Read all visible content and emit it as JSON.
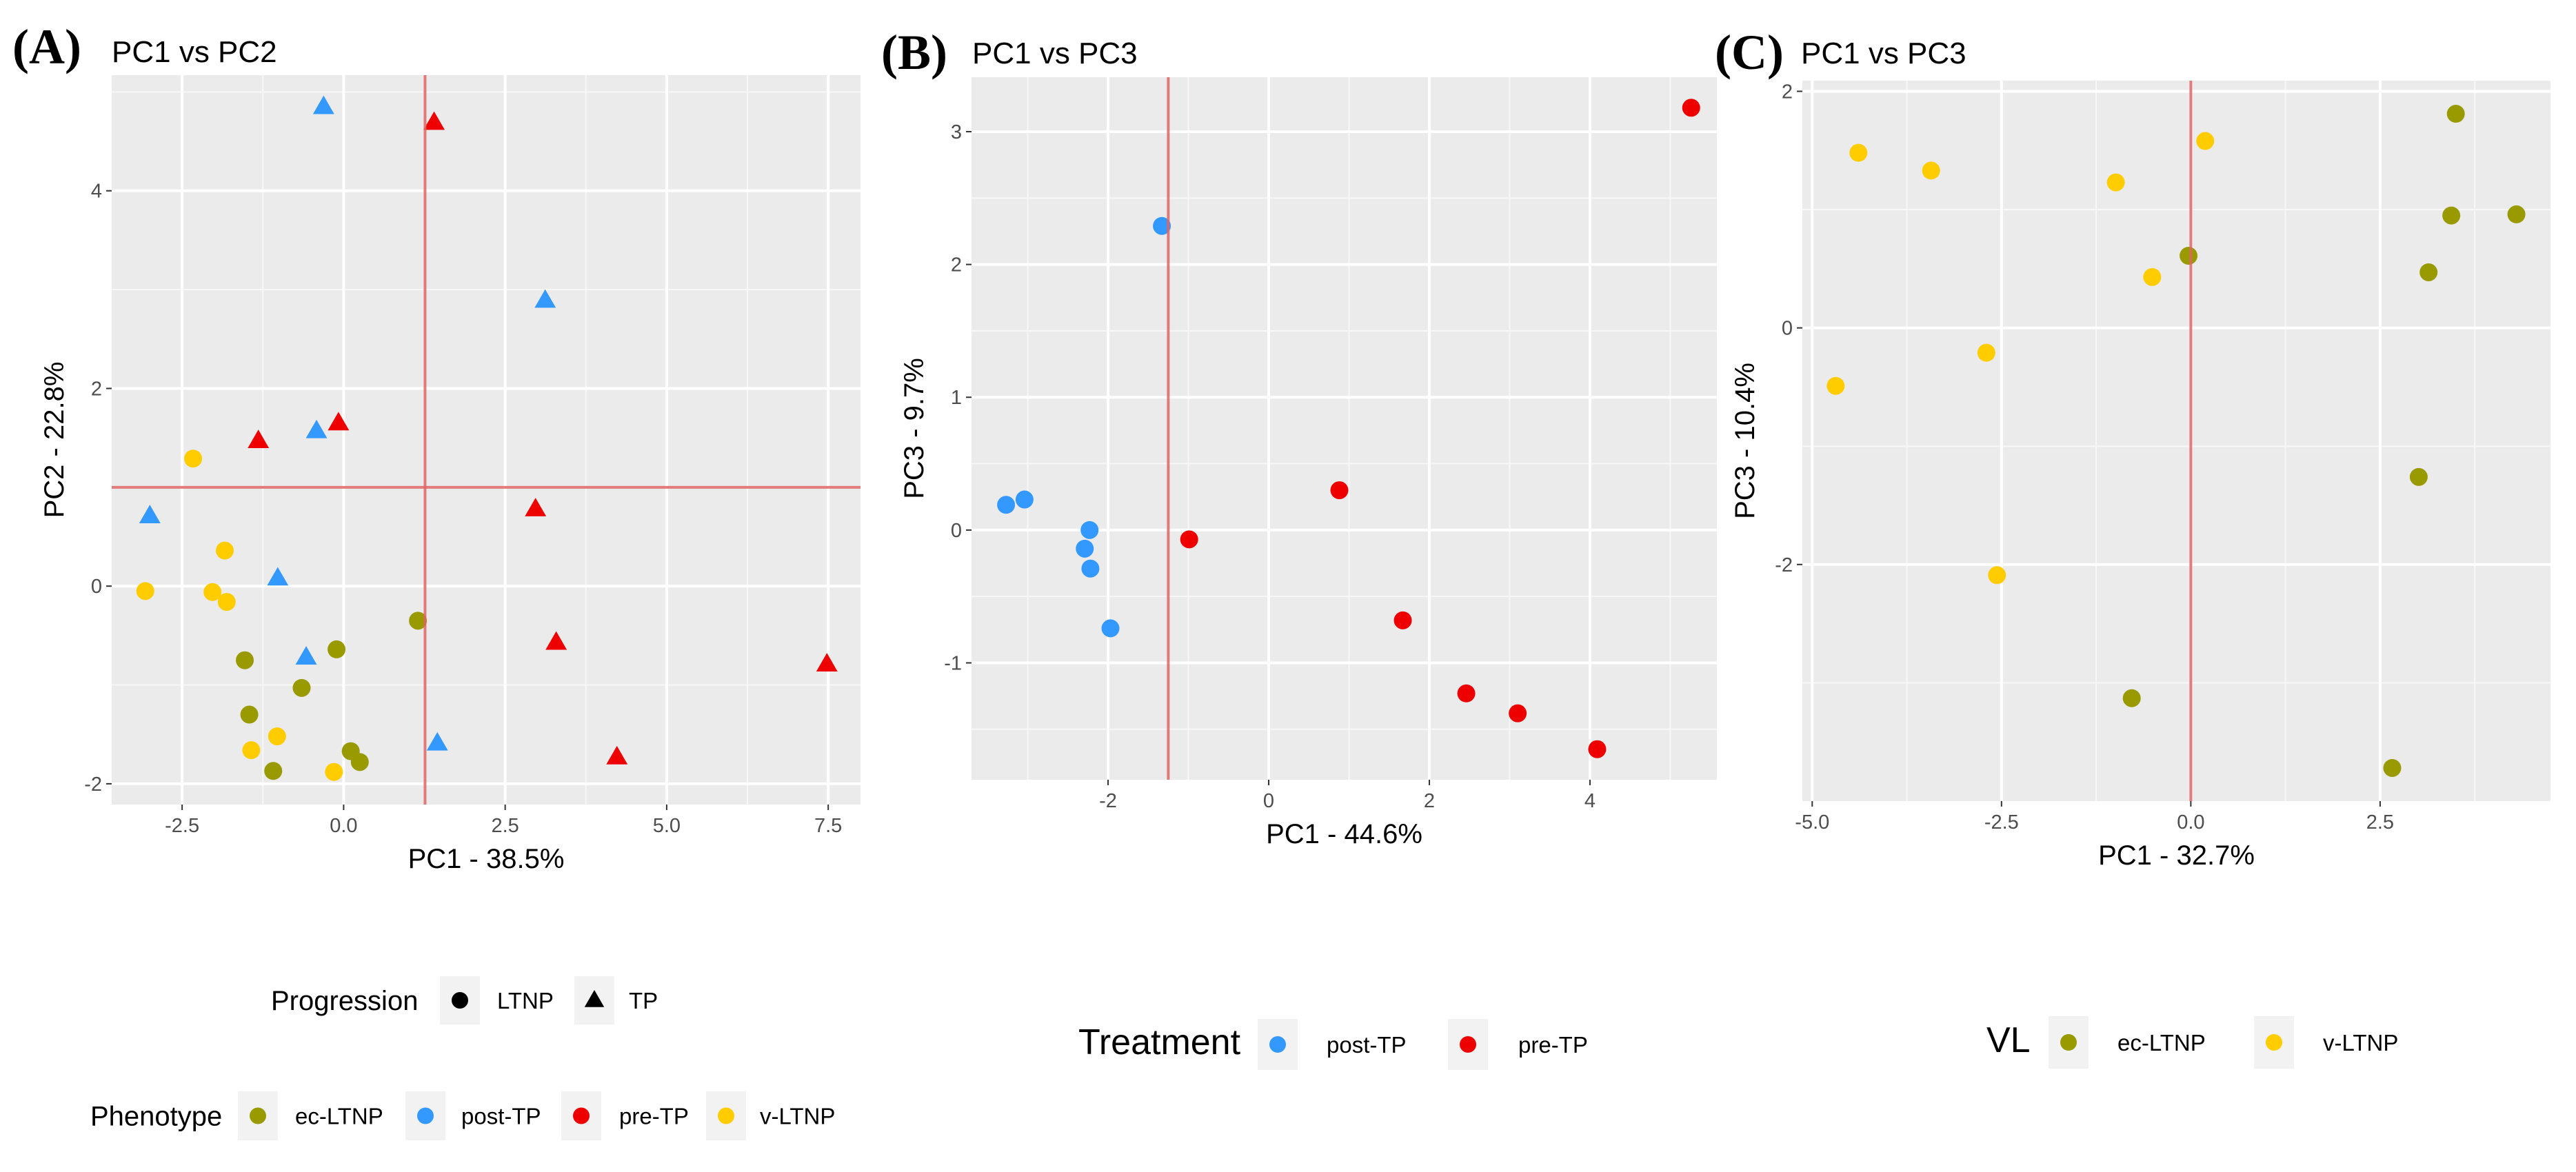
{
  "chart_data": [
    {
      "type": "scatter",
      "panel_label": "(A)",
      "title": "PC1 vs PC2",
      "xlabel": "PC1 - 38.5%",
      "ylabel": "PC2 - 22.8%",
      "xlim": [
        -3.59,
        8.0
      ],
      "ylim": [
        -2.21,
        5.17
      ],
      "xticks": [
        -2.5,
        0.0,
        2.5,
        5.0,
        7.5
      ],
      "xtick_labels": [
        "-2.5",
        "0.0",
        "2.5",
        "5.0",
        "7.5"
      ],
      "yticks": [
        -2,
        0,
        2,
        4
      ],
      "ytick_labels": [
        "-2",
        "0",
        "2",
        "4"
      ],
      "grid": true,
      "reference_lines": {
        "vline": 1.26,
        "hline": 1.0,
        "color": "#E06666"
      },
      "series": [
        {
          "name": "ec-LTNP",
          "shape": "circle",
          "color": "#999900",
          "points": [
            [
              1.15,
              -0.35
            ],
            [
              -0.11,
              -0.64
            ],
            [
              -1.53,
              -0.75
            ],
            [
              -0.65,
              -1.03
            ],
            [
              -1.46,
              -1.3
            ],
            [
              0.11,
              -1.67
            ],
            [
              0.25,
              -1.78
            ],
            [
              -1.09,
              -1.87
            ]
          ]
        },
        {
          "name": "post-TP",
          "shape": "triangle",
          "color": "#3399FF",
          "points": [
            [
              -0.31,
              4.85
            ],
            [
              3.12,
              2.89
            ],
            [
              -0.42,
              1.57
            ],
            [
              -3.0,
              0.71
            ],
            [
              -1.02,
              0.08
            ],
            [
              -0.58,
              -0.72
            ],
            [
              1.45,
              -1.59
            ]
          ]
        },
        {
          "name": "pre-TP",
          "shape": "triangle",
          "color": "#EE0000",
          "points": [
            [
              1.4,
              4.69
            ],
            [
              -0.08,
              1.65
            ],
            [
              -1.32,
              1.47
            ],
            [
              2.97,
              0.78
            ],
            [
              3.29,
              -0.57
            ],
            [
              7.48,
              -0.79
            ],
            [
              4.23,
              -1.73
            ]
          ]
        },
        {
          "name": "v-LTNP",
          "shape": "circle",
          "color": "#FFCC00",
          "points": [
            [
              -2.33,
              1.29
            ],
            [
              -1.84,
              0.36
            ],
            [
              -3.07,
              -0.05
            ],
            [
              -2.03,
              -0.06
            ],
            [
              -1.81,
              -0.16
            ],
            [
              -1.03,
              -1.52
            ],
            [
              -1.43,
              -1.66
            ],
            [
              -0.15,
              -1.88
            ]
          ]
        }
      ],
      "legends": [
        {
          "title": "Progression",
          "position": "bottom",
          "entries": [
            {
              "label": "LTNP",
              "shape": "circle",
              "color": "#000000"
            },
            {
              "label": "TP",
              "shape": "triangle",
              "color": "#000000"
            }
          ]
        },
        {
          "title": "Phenotype",
          "position": "bottom",
          "entries": [
            {
              "label": "ec-LTNP",
              "shape": "circle",
              "color": "#999900"
            },
            {
              "label": "post-TP",
              "shape": "circle",
              "color": "#3399FF"
            },
            {
              "label": "pre-TP",
              "shape": "circle",
              "color": "#EE0000"
            },
            {
              "label": "v-LTNP",
              "shape": "circle",
              "color": "#FFCC00"
            }
          ]
        }
      ]
    },
    {
      "type": "scatter",
      "panel_label": "(B)",
      "title": "PC1 vs PC3",
      "xlabel": "PC1 - 44.6%",
      "ylabel": "PC3 - 9.7%",
      "xlim": [
        -3.7,
        5.58
      ],
      "ylim": [
        -1.88,
        3.41
      ],
      "xticks": [
        -2,
        0,
        2,
        4
      ],
      "xtick_labels": [
        "-2",
        "0",
        "2",
        "4"
      ],
      "yticks": [
        -1,
        0,
        1,
        2,
        3
      ],
      "ytick_labels": [
        "-1",
        "0",
        "1",
        "2",
        "3"
      ],
      "grid": true,
      "reference_lines": {
        "vline": -1.25,
        "color": "#E06666"
      },
      "series": [
        {
          "name": "post-TP",
          "shape": "circle",
          "color": "#3399FF",
          "points": [
            [
              -3.27,
              0.19
            ],
            [
              -3.04,
              0.23
            ],
            [
              -1.33,
              2.29
            ],
            [
              -2.23,
              0.0
            ],
            [
              -2.29,
              -0.14
            ],
            [
              -2.22,
              -0.29
            ],
            [
              -1.97,
              -0.74
            ]
          ]
        },
        {
          "name": "pre-TP",
          "shape": "circle",
          "color": "#EE0000",
          "points": [
            [
              5.26,
              3.18
            ],
            [
              0.88,
              0.3
            ],
            [
              -0.99,
              -0.07
            ],
            [
              1.67,
              -0.68
            ],
            [
              2.46,
              -1.23
            ],
            [
              3.1,
              -1.38
            ],
            [
              4.09,
              -1.65
            ]
          ]
        }
      ],
      "legends": [
        {
          "title": "Treatment",
          "position": "bottom",
          "entries": [
            {
              "label": "post-TP",
              "shape": "circle",
              "color": "#3399FF"
            },
            {
              "label": "pre-TP",
              "shape": "circle",
              "color": "#EE0000"
            }
          ]
        }
      ]
    },
    {
      "type": "scatter",
      "panel_label": "(C)",
      "title": "PC1 vs PC3",
      "xlabel": "PC1 - 32.7%",
      "ylabel": "PC3 - 10.4%",
      "xlim": [
        -5.13,
        4.75
      ],
      "ylim": [
        -4.0,
        2.09
      ],
      "xticks": [
        -5.0,
        -2.5,
        0.0,
        2.5
      ],
      "xtick_labels": [
        "-5.0",
        "-2.5",
        "0.0",
        "2.5"
      ],
      "yticks": [
        -2,
        0,
        2
      ],
      "ytick_labels": [
        "-2",
        "0",
        "2"
      ],
      "grid": true,
      "reference_lines": {
        "vline": 0.0,
        "color": "#E06666"
      },
      "series": [
        {
          "name": "ec-LTNP",
          "shape": "circle",
          "color": "#999900",
          "points": [
            [
              3.5,
              1.81
            ],
            [
              3.44,
              0.95
            ],
            [
              4.3,
              0.96
            ],
            [
              3.14,
              0.47
            ],
            [
              -0.03,
              0.61
            ],
            [
              3.01,
              -1.26
            ],
            [
              -0.78,
              -3.13
            ],
            [
              2.66,
              -3.72
            ]
          ]
        },
        {
          "name": "v-LTNP",
          "shape": "circle",
          "color": "#FFCC00",
          "points": [
            [
              -4.39,
              1.48
            ],
            [
              -3.43,
              1.33
            ],
            [
              -0.99,
              1.23
            ],
            [
              0.19,
              1.58
            ],
            [
              -0.51,
              0.43
            ],
            [
              -2.7,
              -0.21
            ],
            [
              -4.69,
              -0.49
            ],
            [
              -2.56,
              -2.09
            ]
          ]
        }
      ],
      "legends": [
        {
          "title": "VL",
          "position": "bottom",
          "entries": [
            {
              "label": "ec-LTNP",
              "shape": "circle",
              "color": "#999900"
            },
            {
              "label": "v-LTNP",
              "shape": "circle",
              "color": "#FFCC00"
            }
          ]
        }
      ]
    }
  ]
}
